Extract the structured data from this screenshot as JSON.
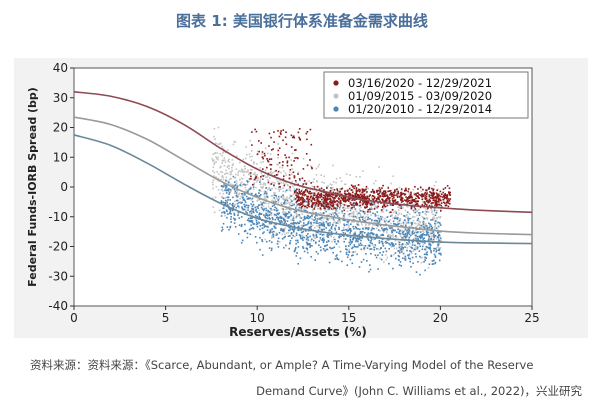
{
  "header": {
    "title": "图表 1:   美国银行体系准备金需求曲线",
    "title_color": "#4a6f9a"
  },
  "chart_data": {
    "type": "scatter",
    "xlabel": "Reserves/Assets (%)",
    "ylabel": "Federal Funds-IORB Spread (bp)",
    "xlim": [
      0,
      25
    ],
    "ylim": [
      -40,
      40
    ],
    "x_ticks": [
      "0",
      "5",
      "10",
      "15",
      "20",
      "25"
    ],
    "y_ticks": [
      "40",
      "30",
      "20",
      "10",
      "0",
      "-10",
      "-20",
      "-30",
      "-40"
    ],
    "legend_position": "top-right",
    "series": [
      {
        "name": "03/16/2020 - 12/29/2021",
        "color": "#8b1a1a",
        "curve_color": "#8e4a55",
        "cloud": {
          "x_range": [
            12,
            20.5
          ],
          "center_y": -3.5,
          "spread_y": 3,
          "sparse_x_range": [
            9.5,
            13
          ],
          "sparse_y_range": [
            0,
            20
          ]
        },
        "curve": [
          [
            0,
            32
          ],
          [
            2,
            30.5
          ],
          [
            4,
            27
          ],
          [
            6,
            21
          ],
          [
            8,
            13
          ],
          [
            10,
            6
          ],
          [
            12,
            1
          ],
          [
            14,
            -2
          ],
          [
            16,
            -4.5
          ],
          [
            18,
            -6
          ],
          [
            20,
            -7
          ],
          [
            22,
            -7.8
          ],
          [
            25,
            -8.5
          ]
        ]
      },
      {
        "name": "01/09/2015 - 03/09/2020",
        "color": "#c4c4c4",
        "curve_color": "#9a9a9a",
        "cloud": {
          "x_range": [
            7.5,
            20
          ],
          "center_y": -4,
          "spread_y": 6
        },
        "curve": [
          [
            0,
            23.5
          ],
          [
            2,
            21
          ],
          [
            4,
            16
          ],
          [
            6,
            9
          ],
          [
            8,
            2
          ],
          [
            10,
            -3.5
          ],
          [
            12,
            -7.5
          ],
          [
            14,
            -10
          ],
          [
            16,
            -12
          ],
          [
            18,
            -13.5
          ],
          [
            20,
            -14.8
          ],
          [
            22,
            -15.5
          ],
          [
            25,
            -16
          ]
        ]
      },
      {
        "name": "01/20/2010 - 12/29/2014",
        "color": "#4a86b8",
        "curve_color": "#6a8898",
        "cloud": {
          "x_range": [
            8,
            20
          ],
          "center_y": -13,
          "spread_y": 5
        },
        "curve": [
          [
            0,
            17.5
          ],
          [
            2,
            14
          ],
          [
            4,
            8
          ],
          [
            6,
            1
          ],
          [
            8,
            -5.5
          ],
          [
            10,
            -10.5
          ],
          [
            12,
            -13.5
          ],
          [
            14,
            -15.5
          ],
          [
            16,
            -16.8
          ],
          [
            18,
            -17.8
          ],
          [
            20,
            -18.5
          ],
          [
            22,
            -18.8
          ],
          [
            25,
            -19
          ]
        ]
      }
    ]
  },
  "source": {
    "line1": "资料来源：资料来源：《Scarce, Abundant, or Ample? A Time-Varying Model of the Reserve",
    "line2": "Demand Curve》(John C. Williams et al., 2022)，兴业研究"
  }
}
